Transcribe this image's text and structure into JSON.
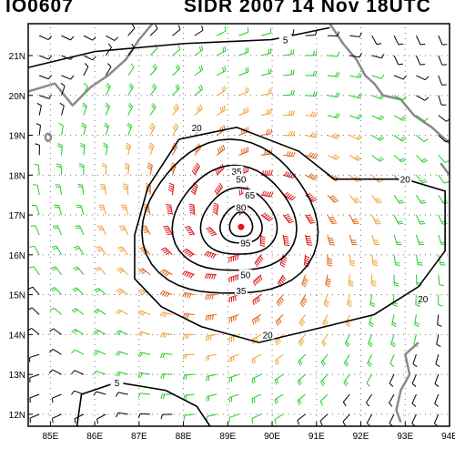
{
  "header": {
    "id_label": "IO0607",
    "storm_label": "SIDR 2007 14 Nov 18UTC"
  },
  "map": {
    "lon_range": [
      84.5,
      94
    ],
    "lat_range": [
      11.7,
      21.8
    ],
    "lon_ticks": [
      "85E",
      "86E",
      "87E",
      "88E",
      "89E",
      "90E",
      "91E",
      "92E",
      "93E",
      "94E"
    ],
    "lat_ticks": [
      "12N",
      "13N",
      "14N",
      "15N",
      "16N",
      "17N",
      "18N",
      "19N",
      "20N",
      "21N"
    ],
    "storm_center": {
      "lon": 89.3,
      "lat": 16.7
    },
    "contour_labels": [
      "5",
      "20",
      "20",
      "20",
      "20",
      "35",
      "35",
      "50",
      "50",
      "65",
      "80",
      "95",
      "5"
    ],
    "colors": {
      "coast": "#8a8a8a",
      "barb_calm": "#000000",
      "barb_20": "#22cc22",
      "barb_35": "#f0a030",
      "barb_50": "#e06010",
      "barb_65": "#dd1010",
      "center": "#ee1111"
    }
  }
}
